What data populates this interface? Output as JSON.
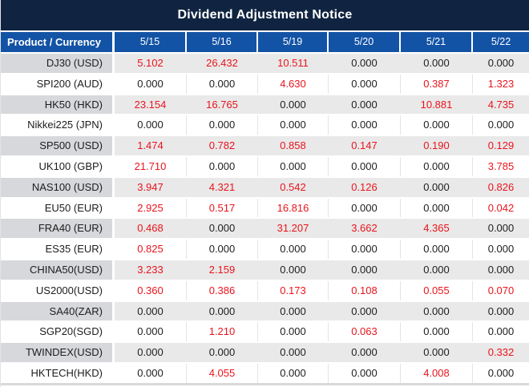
{
  "chart_data": {
    "type": "table",
    "title": "Dividend Adjustment Notice",
    "columns": [
      "Product / Currency",
      "5/15",
      "5/16",
      "5/19",
      "5/20",
      "5/21",
      "5/22"
    ],
    "rows": [
      {
        "product": "DJ30 (USD)",
        "values": [
          "5.102",
          "26.432",
          "10.511",
          "0.000",
          "0.000",
          "0.000"
        ],
        "red": [
          true,
          true,
          true,
          false,
          false,
          false
        ]
      },
      {
        "product": "SPI200 (AUD)",
        "values": [
          "0.000",
          "0.000",
          "4.630",
          "0.000",
          "0.387",
          "1.323"
        ],
        "red": [
          false,
          false,
          true,
          false,
          true,
          true
        ]
      },
      {
        "product": "HK50 (HKD)",
        "values": [
          "23.154",
          "16.765",
          "0.000",
          "0.000",
          "10.881",
          "4.735"
        ],
        "red": [
          true,
          true,
          false,
          false,
          true,
          true
        ]
      },
      {
        "product": "Nikkei225 (JPN)",
        "values": [
          "0.000",
          "0.000",
          "0.000",
          "0.000",
          "0.000",
          "0.000"
        ],
        "red": [
          false,
          false,
          false,
          false,
          false,
          false
        ]
      },
      {
        "product": "SP500 (USD)",
        "values": [
          "1.474",
          "0.782",
          "0.858",
          "0.147",
          "0.190",
          "0.129"
        ],
        "red": [
          true,
          true,
          true,
          true,
          true,
          true
        ]
      },
      {
        "product": "UK100 (GBP)",
        "values": [
          "21.710",
          "0.000",
          "0.000",
          "0.000",
          "0.000",
          "3.785"
        ],
        "red": [
          true,
          false,
          false,
          false,
          false,
          true
        ]
      },
      {
        "product": "NAS100 (USD)",
        "values": [
          "3.947",
          "4.321",
          "0.542",
          "0.126",
          "0.000",
          "0.826"
        ],
        "red": [
          true,
          true,
          true,
          true,
          false,
          true
        ]
      },
      {
        "product": "EU50 (EUR)",
        "values": [
          "2.925",
          "0.517",
          "16.816",
          "0.000",
          "0.000",
          "0.042"
        ],
        "red": [
          true,
          true,
          true,
          false,
          false,
          true
        ]
      },
      {
        "product": "FRA40 (EUR)",
        "values": [
          "0.468",
          "0.000",
          "31.207",
          "3.662",
          "4.365",
          "0.000"
        ],
        "red": [
          true,
          false,
          true,
          true,
          true,
          false
        ]
      },
      {
        "product": "ES35 (EUR)",
        "values": [
          "0.825",
          "0.000",
          "0.000",
          "0.000",
          "0.000",
          "0.000"
        ],
        "red": [
          true,
          false,
          false,
          false,
          false,
          false
        ]
      },
      {
        "product": "CHINA50(USD)",
        "values": [
          "3.233",
          "2.159",
          "0.000",
          "0.000",
          "0.000",
          "0.000"
        ],
        "red": [
          true,
          true,
          false,
          false,
          false,
          false
        ]
      },
      {
        "product": "US2000(USD)",
        "values": [
          "0.360",
          "0.386",
          "0.173",
          "0.108",
          "0.055",
          "0.070"
        ],
        "red": [
          true,
          true,
          true,
          true,
          true,
          true
        ]
      },
      {
        "product": "SA40(ZAR)",
        "values": [
          "0.000",
          "0.000",
          "0.000",
          "0.000",
          "0.000",
          "0.000"
        ],
        "red": [
          false,
          false,
          false,
          false,
          false,
          false
        ]
      },
      {
        "product": "SGP20(SGD)",
        "values": [
          "0.000",
          "1.210",
          "0.000",
          "0.063",
          "0.000",
          "0.000"
        ],
        "red": [
          false,
          true,
          false,
          true,
          false,
          false
        ]
      },
      {
        "product": "TWINDEX(USD)",
        "values": [
          "0.000",
          "0.000",
          "0.000",
          "0.000",
          "0.000",
          "0.332"
        ],
        "red": [
          false,
          false,
          false,
          false,
          false,
          true
        ]
      },
      {
        "product": "HKTECH(HKD)",
        "values": [
          "0.000",
          "4.055",
          "0.000",
          "0.000",
          "4.008",
          "0.000"
        ],
        "red": [
          false,
          true,
          false,
          false,
          true,
          false
        ]
      }
    ],
    "layout": {
      "striping": "odd data rows shaded gray, even rows white",
      "value_alignment": "center",
      "product_alignment": "right"
    }
  },
  "colors": {
    "title_bar_bg": "#102441",
    "header_row_bg": "#1353a6",
    "header_text": "#ffffff",
    "alt_row_bg": "#e9e9e9",
    "alt_product_bg": "#d6d8db",
    "nonzero_value_red": "#e9141d",
    "zero_value_black": "#1d1d1d"
  }
}
